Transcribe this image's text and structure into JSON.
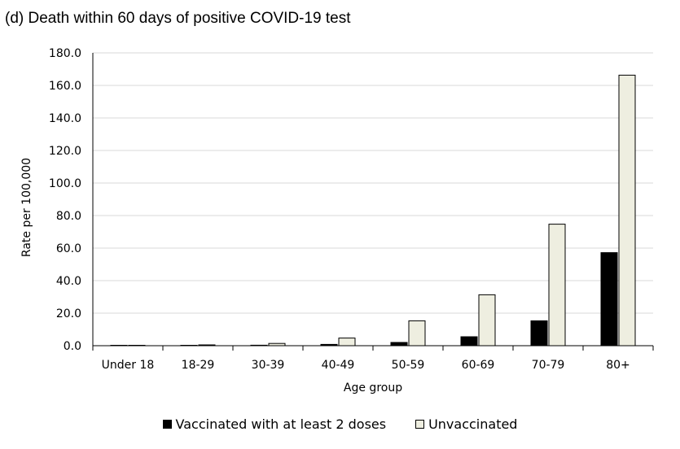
{
  "chart_data": {
    "type": "bar",
    "title": "(d) Death within 60 days of positive COVID-19 test",
    "xlabel": "Age group",
    "ylabel": "Rate per 100,000",
    "ylim": [
      0,
      180
    ],
    "yticks": [
      "0.0",
      "20.0",
      "40.0",
      "60.0",
      "80.0",
      "100.0",
      "120.0",
      "140.0",
      "160.0",
      "180.0"
    ],
    "grid": true,
    "legend_position": "bottom",
    "categories": [
      "Under 18",
      "18-29",
      "30-39",
      "40-49",
      "50-59",
      "60-69",
      "70-79",
      "80+"
    ],
    "series": [
      {
        "name": "Vaccinated with at least 2 doses",
        "color": "#000000",
        "values": [
          0.0,
          0.2,
          0.3,
          0.8,
          2.0,
          5.5,
          15.3,
          57.2
        ]
      },
      {
        "name": "Unvaccinated",
        "color": "#eeeee0",
        "values": [
          0.1,
          0.5,
          1.4,
          4.7,
          15.3,
          31.3,
          74.7,
          166.3
        ]
      }
    ]
  }
}
